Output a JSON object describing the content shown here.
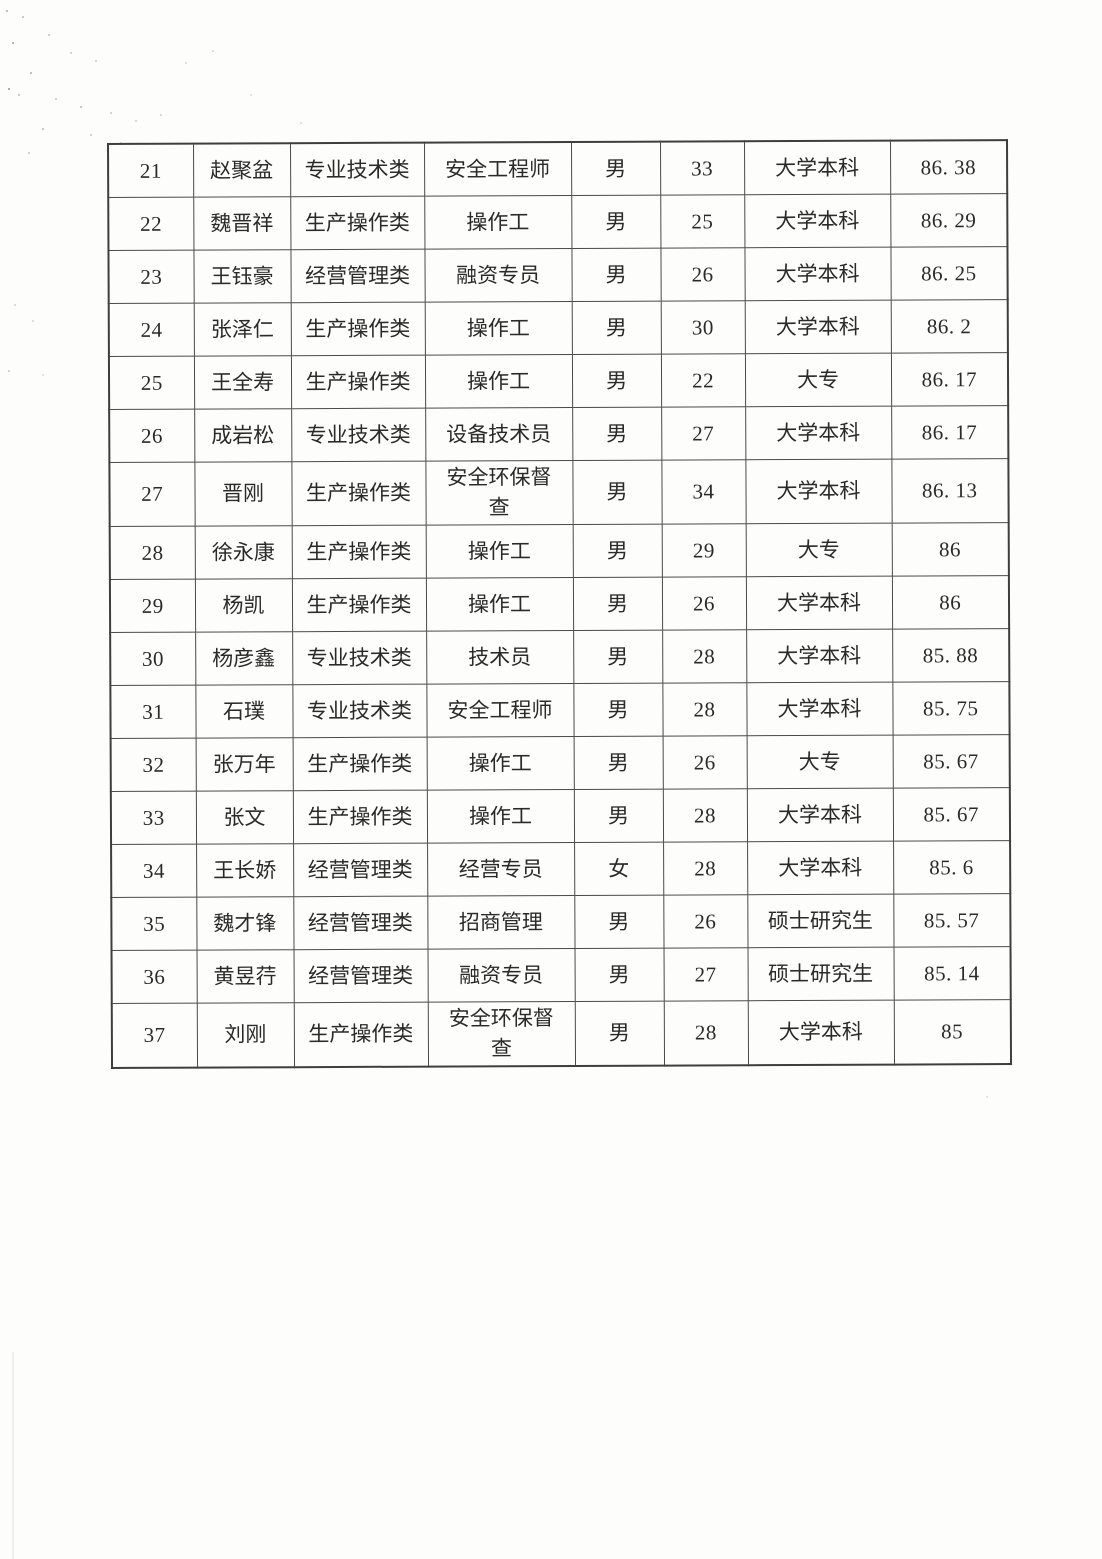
{
  "colors": {
    "ink": "#2a2a2a",
    "table_line": "#4a4a4a",
    "paper": "#fdfdfc"
  },
  "table": {
    "rows": [
      {
        "no": "21",
        "name": "赵聚盆",
        "category": "专业技术类",
        "position": "安全工程师",
        "gender": "男",
        "age": "33",
        "education": "大学本科",
        "score": "86. 38"
      },
      {
        "no": "22",
        "name": "魏晋祥",
        "category": "生产操作类",
        "position": "操作工",
        "gender": "男",
        "age": "25",
        "education": "大学本科",
        "score": "86. 29"
      },
      {
        "no": "23",
        "name": "王钰豪",
        "category": "经营管理类",
        "position": "融资专员",
        "gender": "男",
        "age": "26",
        "education": "大学本科",
        "score": "86. 25"
      },
      {
        "no": "24",
        "name": "张泽仁",
        "category": "生产操作类",
        "position": "操作工",
        "gender": "男",
        "age": "30",
        "education": "大学本科",
        "score": "86. 2"
      },
      {
        "no": "25",
        "name": "王全寿",
        "category": "生产操作类",
        "position": "操作工",
        "gender": "男",
        "age": "22",
        "education": "大专",
        "score": "86. 17"
      },
      {
        "no": "26",
        "name": "成岩松",
        "category": "专业技术类",
        "position": "设备技术员",
        "gender": "男",
        "age": "27",
        "education": "大学本科",
        "score": "86. 17"
      },
      {
        "no": "27",
        "name": "晋刚",
        "category": "生产操作类",
        "position": "安全环保督查",
        "gender": "男",
        "age": "34",
        "education": "大学本科",
        "score": "86. 13"
      },
      {
        "no": "28",
        "name": "徐永康",
        "category": "生产操作类",
        "position": "操作工",
        "gender": "男",
        "age": "29",
        "education": "大专",
        "score": "86"
      },
      {
        "no": "29",
        "name": "杨凯",
        "category": "生产操作类",
        "position": "操作工",
        "gender": "男",
        "age": "26",
        "education": "大学本科",
        "score": "86"
      },
      {
        "no": "30",
        "name": "杨彦鑫",
        "category": "专业技术类",
        "position": "技术员",
        "gender": "男",
        "age": "28",
        "education": "大学本科",
        "score": "85. 88"
      },
      {
        "no": "31",
        "name": "石璞",
        "category": "专业技术类",
        "position": "安全工程师",
        "gender": "男",
        "age": "28",
        "education": "大学本科",
        "score": "85. 75"
      },
      {
        "no": "32",
        "name": "张万年",
        "category": "生产操作类",
        "position": "操作工",
        "gender": "男",
        "age": "26",
        "education": "大专",
        "score": "85. 67"
      },
      {
        "no": "33",
        "name": "张文",
        "category": "生产操作类",
        "position": "操作工",
        "gender": "男",
        "age": "28",
        "education": "大学本科",
        "score": "85. 67"
      },
      {
        "no": "34",
        "name": "王长娇",
        "category": "经营管理类",
        "position": "经营专员",
        "gender": "女",
        "age": "28",
        "education": "大学本科",
        "score": "85. 6"
      },
      {
        "no": "35",
        "name": "魏才锋",
        "category": "经营管理类",
        "position": "招商管理",
        "gender": "男",
        "age": "26",
        "education": "硕士研究生",
        "score": "85. 57"
      },
      {
        "no": "36",
        "name": "黄昱荇",
        "category": "经营管理类",
        "position": "融资专员",
        "gender": "男",
        "age": "27",
        "education": "硕士研究生",
        "score": "85. 14"
      },
      {
        "no": "37",
        "name": "刘刚",
        "category": "生产操作类",
        "position": "安全环保督查",
        "gender": "男",
        "age": "28",
        "education": "大学本科",
        "score": "85"
      }
    ]
  }
}
